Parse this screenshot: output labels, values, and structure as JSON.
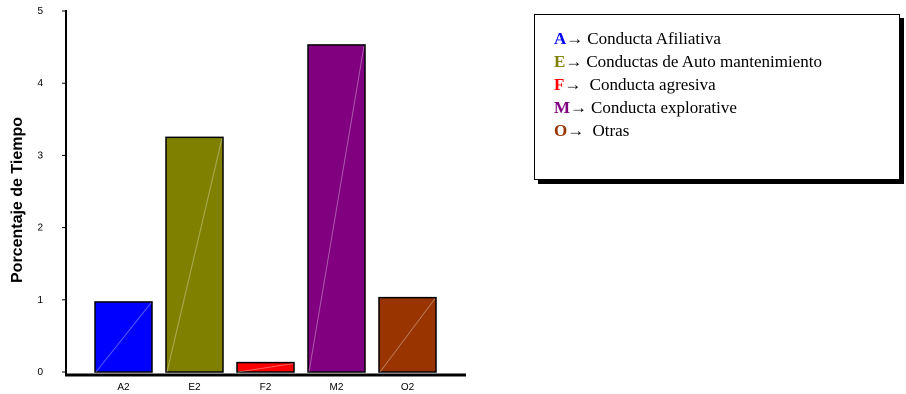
{
  "chart_data": {
    "type": "bar",
    "categories": [
      "A2",
      "E2",
      "F2",
      "M2",
      "O2"
    ],
    "values": [
      0.97,
      3.25,
      0.13,
      4.53,
      1.03
    ],
    "colors": [
      "#0000ff",
      "#808000",
      "#ff0000",
      "#800080",
      "#993300"
    ],
    "ylabel": "Porcentaje de Tiempo",
    "ylim": [
      0,
      5
    ],
    "yticks": [
      "0",
      "1",
      "2",
      "3",
      "4",
      "5"
    ],
    "grid": false
  },
  "legend": {
    "arrow": "→",
    "items": [
      {
        "letter": "A",
        "text": "Conducta Afiliativa",
        "color": "#0000ff"
      },
      {
        "letter": "E",
        "text": "Conductas de Auto mantenimiento",
        "color": "#808000"
      },
      {
        "letter": "F",
        "text": " Conducta agresiva",
        "color": "#ff0000"
      },
      {
        "letter": "M",
        "text": "Conducta explorative",
        "color": "#800080"
      },
      {
        "letter": "O",
        "text": " Otras",
        "color": "#993300"
      }
    ]
  }
}
